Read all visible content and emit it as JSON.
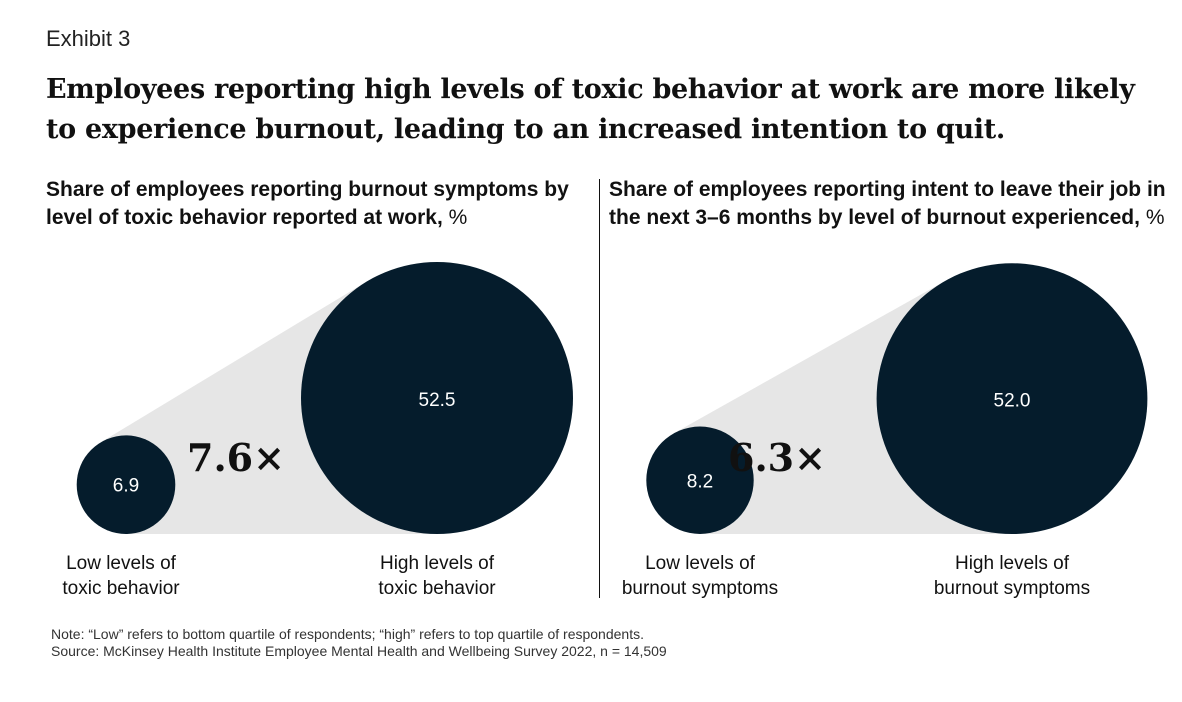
{
  "exhibit": "Exhibit 3",
  "headline": "Employees reporting high levels of toxic behavior at work are more likely to experience burnout, leading to an increased intention to quit.",
  "colors": {
    "bubble": "#051c2c",
    "wedge": "#e6e6e6",
    "text": "#111111"
  },
  "chart_data": [
    {
      "type": "bubble",
      "title": "Share of employees reporting burnout symptoms by level of toxic behavior reported at work,",
      "unit": "%",
      "categories": [
        "Low levels of\ntoxic behavior",
        "High levels of\ntoxic behavior"
      ],
      "values": [
        6.9,
        52.5
      ],
      "value_labels": [
        "6.9",
        "52.5"
      ],
      "multiplier": "7.6×"
    },
    {
      "type": "bubble",
      "title": "Share of employees reporting intent to leave their job in the next 3–6 months by level of burnout experienced,",
      "unit": "%",
      "categories": [
        "Low levels of\nburnout symptoms",
        "High levels of\nburnout symptoms"
      ],
      "values": [
        8.2,
        52.0
      ],
      "value_labels": [
        "8.2",
        "52.0"
      ],
      "multiplier": "6.3×"
    }
  ],
  "footer": {
    "note": "Note: “Low” refers to bottom quartile of respondents; “high” refers to top quartile of respondents.",
    "source": "Source: McKinsey Health Institute Employee Mental Health and Wellbeing Survey 2022, n = 14,509"
  }
}
